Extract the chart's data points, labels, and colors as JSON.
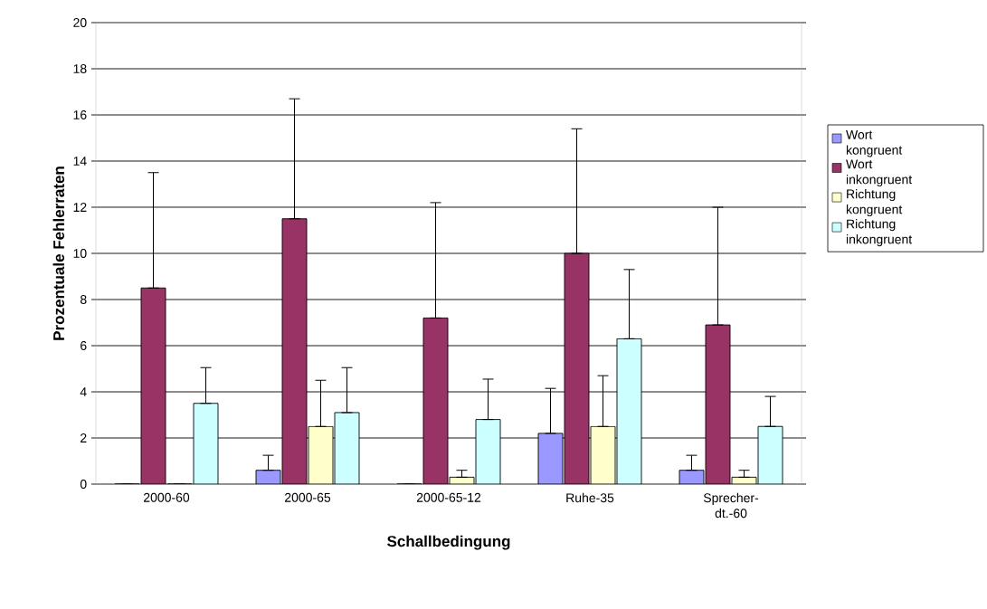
{
  "chart_data": {
    "type": "bar",
    "xlabel": "Schallbedingung",
    "ylabel": "Prozentuale Fehlerraten",
    "categories": [
      "2000-60",
      "2000-65",
      "2000-65-12",
      "Ruhe-35",
      "Sprecher-dt.-60"
    ],
    "series": [
      {
        "name": "Wort kongruent",
        "color": "#9999ff",
        "values": [
          0,
          0.6,
          0,
          2.2,
          0.6
        ],
        "errors": [
          null,
          [
            0.6,
            1.25
          ],
          null,
          [
            2.2,
            4.15
          ],
          [
            0.6,
            1.25
          ]
        ]
      },
      {
        "name": "Wort inkongruent",
        "color": "#993366",
        "values": [
          8.5,
          11.5,
          7.2,
          10.0,
          6.9
        ],
        "errors": [
          [
            8.5,
            13.5
          ],
          [
            11.5,
            16.7
          ],
          [
            7.2,
            12.2
          ],
          [
            10.0,
            15.4
          ],
          [
            6.9,
            12.0
          ]
        ]
      },
      {
        "name": "Richtung kongruent",
        "color": "#ffffcc",
        "values": [
          0,
          2.5,
          0.3,
          2.5,
          0.3
        ],
        "errors": [
          null,
          [
            2.5,
            4.5
          ],
          [
            0.3,
            0.6
          ],
          [
            2.5,
            4.7
          ],
          [
            0.3,
            0.6
          ]
        ]
      },
      {
        "name": "Richtung inkongruent",
        "color": "#ccffff",
        "values": [
          3.5,
          3.1,
          2.8,
          6.3,
          2.5
        ],
        "errors": [
          [
            3.5,
            5.05
          ],
          [
            3.1,
            5.05
          ],
          [
            2.8,
            4.55
          ],
          [
            6.3,
            9.3
          ],
          [
            2.5,
            3.8
          ]
        ]
      }
    ],
    "ylim": [
      0,
      20
    ],
    "yticks": [
      0,
      2,
      4,
      6,
      8,
      10,
      12,
      14,
      16,
      18,
      20
    ],
    "grid": "y",
    "legend": "right"
  }
}
